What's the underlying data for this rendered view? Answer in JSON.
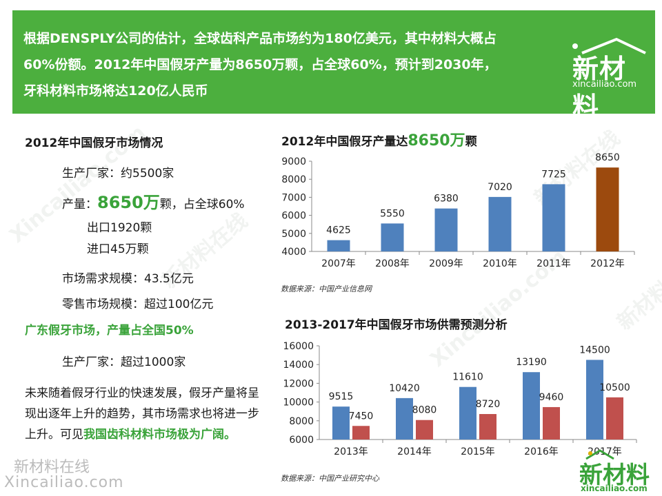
{
  "banner": {
    "line1": "根据DENSPLY公司的估计，全球齿科产品市场约为180亿美元，其中材料大概占",
    "line2": "60%份额。2012年中国假牙产量为8650万颗，占全球60%，预计到2030年，",
    "line3": "牙科材料市场将达120亿人民币",
    "logo_main": "新材料",
    "logo_sub": "xincailiao.com"
  },
  "left": {
    "title": "2012年中国假牙市场情况",
    "manufacturers": "生产厂家：约5500家",
    "output_prefix": "产量：",
    "output_value": "8650万",
    "output_suffix": "颗，占全球60%",
    "export": "出口1920颗",
    "import": "进口45万颗",
    "demand": "市场需求规模：43.5亿元",
    "retail": "零售市场规模：超过100亿元",
    "guangdong": "广东假牙市场，产量占全国50%",
    "gd_manufacturers": "生产厂家：超过1000家",
    "para_plain": "未来随着假牙行业的快速发展，假牙产量将呈现出逐年上升的趋势，其市场需求也将进一步上升。可见",
    "para_green": "我国齿科材料市场极为广阔。"
  },
  "watermark": {
    "cn": "新材料在线",
    "en": "Xincailiao.com"
  },
  "corner_logo": {
    "main": "新材料",
    "sub": "xincailiao.com"
  },
  "chart_data": [
    {
      "type": "bar",
      "title_prefix": "2012年中国假牙产量达",
      "title_highlight": "8650万",
      "title_suffix": "颗",
      "categories": [
        "2007年",
        "2008年",
        "2009年",
        "2010年",
        "2011年",
        "2012年"
      ],
      "values": [
        4625,
        5550,
        6380,
        7020,
        7725,
        8650
      ],
      "ylim": [
        4000,
        9000
      ],
      "yticks": [
        4000,
        5000,
        6000,
        7000,
        8000,
        9000
      ],
      "colors": [
        "#4f81bd",
        "#4f81bd",
        "#4f81bd",
        "#4f81bd",
        "#4f81bd",
        "#9c4a0e"
      ],
      "source": "数据来源：中国产业信息网"
    },
    {
      "type": "bar",
      "title": "2013-2017年中国假牙市场供需预测分析",
      "categories": [
        "2013年",
        "2014年",
        "2015年",
        "2016年",
        "2017年"
      ],
      "series": [
        {
          "values": [
            9515,
            10420,
            11610,
            13190,
            14500
          ],
          "color": "#4f81bd"
        },
        {
          "values": [
            7450,
            8080,
            8720,
            9460,
            10500
          ],
          "color": "#c0504d"
        }
      ],
      "ylim": [
        6000,
        16000
      ],
      "yticks": [
        6000,
        8000,
        10000,
        12000,
        14000,
        16000
      ],
      "source": "数据来源：中国产业研究中心"
    }
  ]
}
